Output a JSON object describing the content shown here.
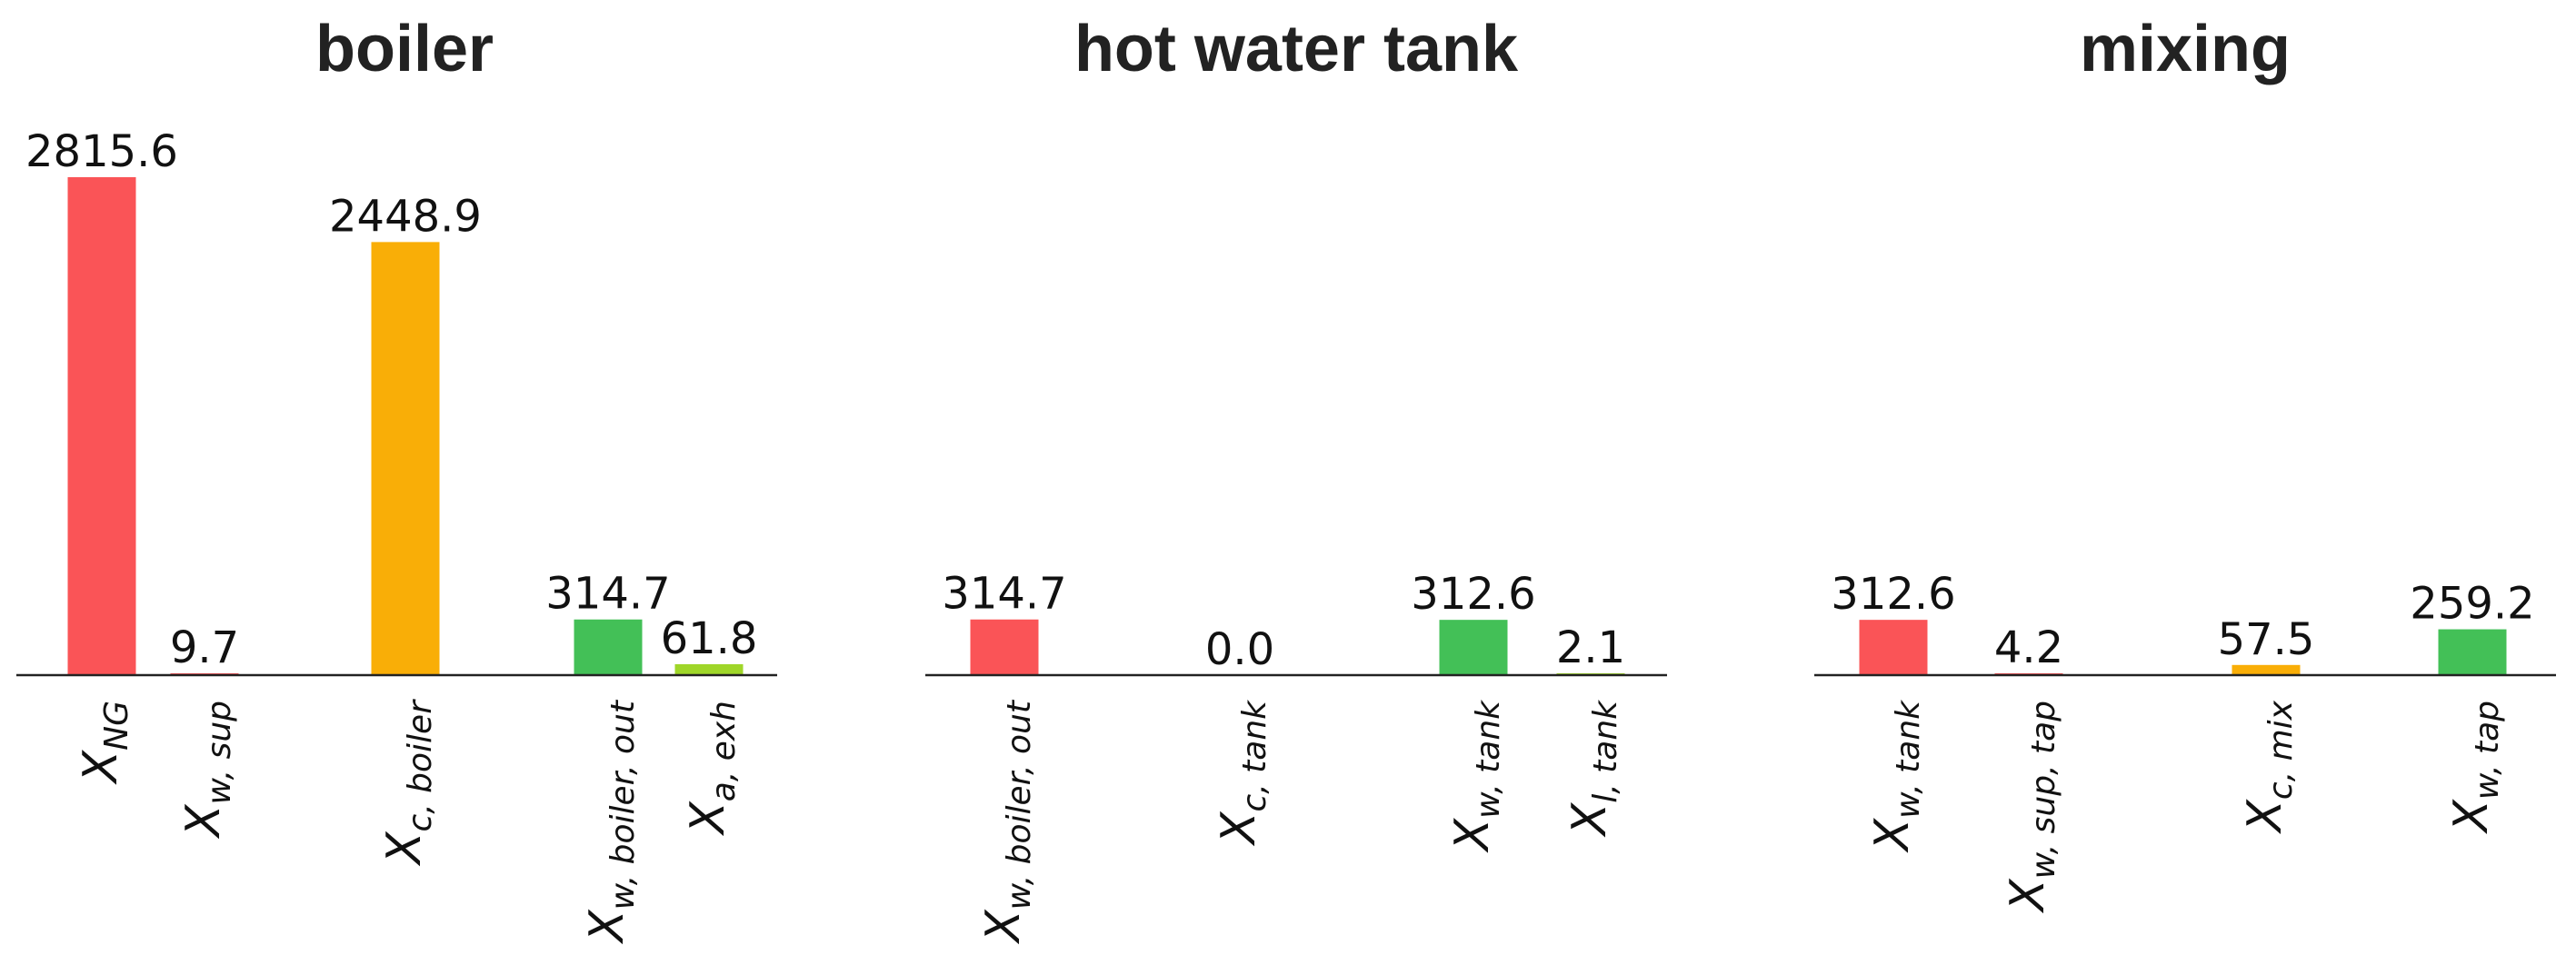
{
  "chart_data": [
    {
      "type": "bar",
      "title": "boiler",
      "xlabel": "",
      "ylabel": "",
      "ylim": [
        0,
        2815.6
      ],
      "grid": false,
      "categories": [
        {
          "main": "X",
          "sub": "NG"
        },
        {
          "main": "X",
          "sub": "w, sup"
        },
        {
          "main": "X",
          "sub": "c, boiler"
        },
        {
          "main": "X",
          "sub": "w, boiler, out"
        },
        {
          "main": "X",
          "sub": "a, exh"
        }
      ],
      "values": [
        2815.6,
        9.7,
        2448.9,
        314.7,
        61.8
      ],
      "labels": [
        "2815.6",
        "9.7",
        "2448.9",
        "314.7",
        "61.8"
      ],
      "colors": [
        "#fa5457",
        "#fa5457",
        "#f9ae07",
        "#43c057",
        "#9fd629"
      ]
    },
    {
      "type": "bar",
      "title": "hot water tank",
      "xlabel": "",
      "ylabel": "",
      "ylim": [
        0,
        2815.6
      ],
      "grid": false,
      "categories": [
        {
          "main": "X",
          "sub": "w, boiler, out"
        },
        {
          "main": "X",
          "sub": "c, tank"
        },
        {
          "main": "X",
          "sub": "w, tank"
        },
        {
          "main": "X",
          "sub": "l, tank"
        }
      ],
      "values": [
        314.7,
        0.0,
        312.6,
        2.1
      ],
      "labels": [
        "314.7",
        "0.0",
        "312.6",
        "2.1"
      ],
      "colors": [
        "#fa5457",
        "#f9ae07",
        "#43c057",
        "#9fd629"
      ]
    },
    {
      "type": "bar",
      "title": "mixing",
      "xlabel": "",
      "ylabel": "",
      "ylim": [
        0,
        2815.6
      ],
      "grid": false,
      "categories": [
        {
          "main": "X",
          "sub": "w, tank"
        },
        {
          "main": "X",
          "sub": "w, sup, tap"
        },
        {
          "main": "X",
          "sub": "c, mix"
        },
        {
          "main": "X",
          "sub": "w, tap"
        }
      ],
      "values": [
        312.6,
        4.2,
        57.5,
        259.2
      ],
      "labels": [
        "312.6",
        "4.2",
        "57.5",
        "259.2"
      ],
      "colors": [
        "#fa5457",
        "#fa5457",
        "#f9ae07",
        "#43c057"
      ]
    }
  ]
}
